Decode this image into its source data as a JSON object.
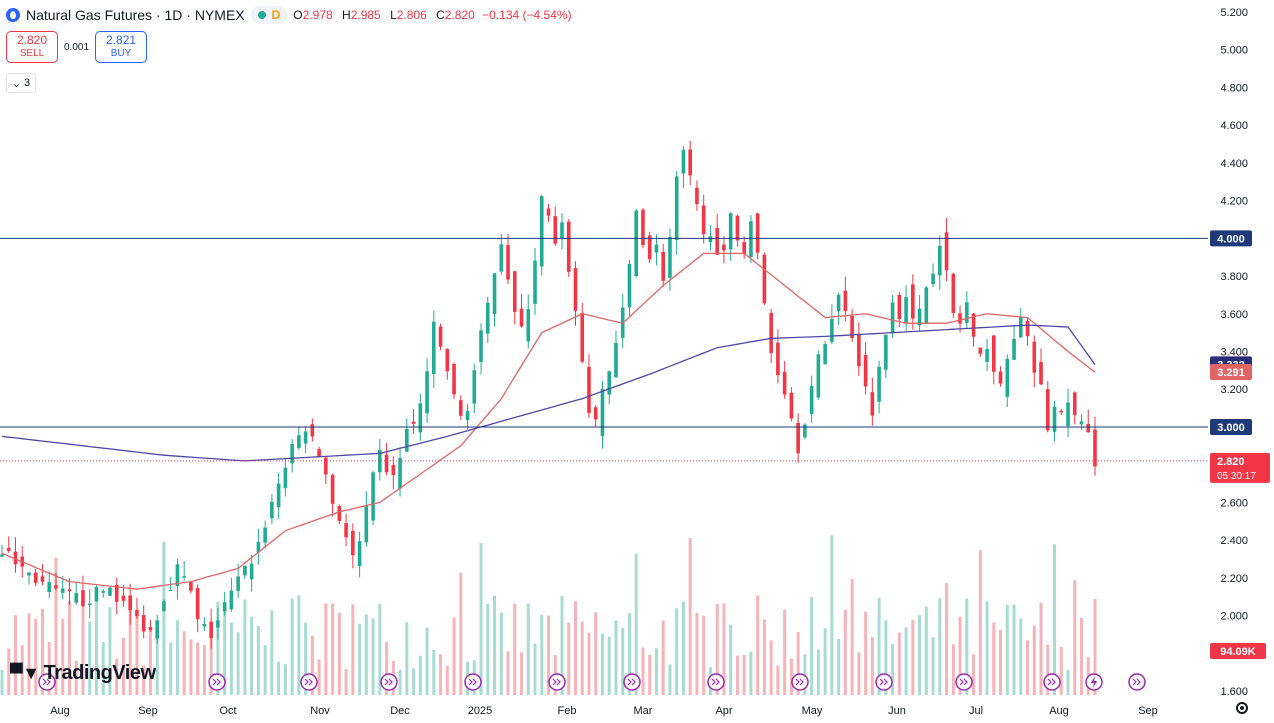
{
  "header": {
    "title": "Natural Gas Futures · 1D · NYMEX",
    "timeframe_badge": "D",
    "ohlc": {
      "o_label": "O",
      "o": "2.978",
      "h_label": "H",
      "h": "2.985",
      "l_label": "L",
      "l": "2.806",
      "c_label": "C",
      "c": "2.820",
      "change": "−0.134 (−4.54%)"
    }
  },
  "trade": {
    "sell_price": "2.820",
    "sell_label": "SELL",
    "spread": "0.001",
    "buy_price": "2.821",
    "buy_label": "BUY"
  },
  "indicators_toggle": {
    "count": "3"
  },
  "branding": {
    "logo_text": "TradingView"
  },
  "colors": {
    "up": "#22ab94",
    "down": "#f23645",
    "ma50": "#e06666",
    "ma200": "#5046a8",
    "hline": "#2962ff",
    "price_label": "#f23645"
  },
  "chart_data": {
    "type": "candlestick",
    "y_ticks": [
      "5.200",
      "5.000",
      "4.800",
      "4.600",
      "4.400",
      "4.200",
      "4.000",
      "3.800",
      "3.600",
      "3.400",
      "3.200",
      "3.000",
      "2.800",
      "2.600",
      "2.400",
      "2.200",
      "2.000",
      "1.800",
      "1.600"
    ],
    "x_ticks": [
      "Aug",
      "Sep",
      "Oct",
      "Nov",
      "Dec",
      "2025",
      "Feb",
      "Mar",
      "Apr",
      "May",
      "Jun",
      "Jul",
      "Aug",
      "Sep"
    ],
    "ylim": [
      1.6,
      5.25
    ],
    "horizontal_lines": [
      {
        "value": 4.0,
        "label": "4.000"
      },
      {
        "value": 3.0,
        "label": "3.000"
      }
    ],
    "ma_labels": [
      {
        "value": 3.332,
        "label": "3.332",
        "series": "ma200"
      },
      {
        "value": 3.291,
        "label": "3.291",
        "series": "ma50"
      }
    ],
    "last_price": {
      "value": 2.82,
      "label": "2.820",
      "countdown": "05:30:17"
    },
    "volume_label": "94.09K",
    "event_markers": 13,
    "close_path": [
      [
        0,
        2.35
      ],
      [
        4,
        2.22
      ],
      [
        8,
        2.12
      ],
      [
        12,
        2.08
      ],
      [
        16,
        2.15
      ],
      [
        18,
        2.06
      ],
      [
        20,
        1.98
      ],
      [
        22,
        1.92
      ],
      [
        24,
        2.1
      ],
      [
        26,
        2.25
      ],
      [
        28,
        2.12
      ],
      [
        29,
        1.96
      ],
      [
        31,
        1.9
      ],
      [
        33,
        2.05
      ],
      [
        35,
        2.18
      ],
      [
        37,
        2.3
      ],
      [
        38,
        2.38
      ],
      [
        40,
        2.6
      ],
      [
        42,
        2.8
      ],
      [
        44,
        2.95
      ],
      [
        45,
        3.0
      ],
      [
        46,
        2.92
      ],
      [
        47,
        2.85
      ],
      [
        48,
        2.75
      ],
      [
        49,
        2.6
      ],
      [
        50,
        2.52
      ],
      [
        51,
        2.42
      ],
      [
        52,
        2.3
      ],
      [
        53,
        2.38
      ],
      [
        54,
        2.55
      ],
      [
        55,
        2.72
      ],
      [
        56,
        2.85
      ],
      [
        57,
        2.78
      ],
      [
        58,
        2.72
      ],
      [
        59,
        2.85
      ],
      [
        60,
        2.98
      ],
      [
        61,
        3.0
      ],
      [
        62,
        3.12
      ],
      [
        63,
        3.3
      ],
      [
        64,
        3.52
      ],
      [
        65,
        3.42
      ],
      [
        66,
        3.3
      ],
      [
        67,
        3.15
      ],
      [
        68,
        3.05
      ],
      [
        69,
        3.12
      ],
      [
        70,
        3.3
      ],
      [
        71,
        3.48
      ],
      [
        72,
        3.62
      ],
      [
        73,
        3.85
      ],
      [
        74,
        4.0
      ],
      [
        75,
        3.8
      ],
      [
        76,
        3.6
      ],
      [
        77,
        3.5
      ],
      [
        78,
        3.65
      ],
      [
        79,
        3.9
      ],
      [
        80,
        4.2
      ],
      [
        81,
        4.1
      ],
      [
        82,
        3.95
      ],
      [
        83,
        4.05
      ],
      [
        84,
        3.85
      ],
      [
        85,
        3.6
      ],
      [
        86,
        3.35
      ],
      [
        87,
        3.1
      ],
      [
        88,
        3.0
      ],
      [
        89,
        3.2
      ],
      [
        90,
        3.3
      ],
      [
        91,
        3.45
      ],
      [
        92,
        3.6
      ],
      [
        93,
        3.85
      ],
      [
        94,
        4.15
      ],
      [
        95,
        4.0
      ],
      [
        96,
        3.9
      ],
      [
        97,
        3.95
      ],
      [
        98,
        3.8
      ],
      [
        99,
        4.0
      ],
      [
        100,
        4.3
      ],
      [
        101,
        4.45
      ],
      [
        102,
        4.3
      ],
      [
        103,
        4.15
      ],
      [
        104,
        4.0
      ],
      [
        105,
        4.05
      ],
      [
        106,
        3.95
      ],
      [
        107,
        3.9
      ],
      [
        108,
        4.1
      ],
      [
        109,
        4.0
      ],
      [
        110,
        3.95
      ],
      [
        111,
        4.1
      ],
      [
        112,
        3.9
      ],
      [
        113,
        3.65
      ],
      [
        114,
        3.4
      ],
      [
        115,
        3.3
      ],
      [
        116,
        3.2
      ],
      [
        117,
        3.05
      ],
      [
        118,
        2.9
      ],
      [
        119,
        3.05
      ],
      [
        120,
        3.2
      ],
      [
        121,
        3.35
      ],
      [
        122,
        3.45
      ],
      [
        123,
        3.6
      ],
      [
        124,
        3.7
      ],
      [
        125,
        3.6
      ],
      [
        126,
        3.5
      ],
      [
        127,
        3.35
      ],
      [
        128,
        3.2
      ],
      [
        129,
        3.1
      ],
      [
        130,
        3.3
      ],
      [
        131,
        3.5
      ],
      [
        132,
        3.7
      ],
      [
        133,
        3.6
      ],
      [
        134,
        3.72
      ],
      [
        135,
        3.55
      ],
      [
        136,
        3.6
      ],
      [
        137,
        3.75
      ],
      [
        138,
        3.85
      ],
      [
        139,
        4.0
      ],
      [
        140,
        3.8
      ],
      [
        141,
        3.6
      ],
      [
        142,
        3.55
      ],
      [
        143,
        3.65
      ],
      [
        144,
        3.45
      ],
      [
        145,
        3.35
      ],
      [
        146,
        3.45
      ],
      [
        147,
        3.3
      ],
      [
        148,
        3.2
      ],
      [
        149,
        3.35
      ],
      [
        150,
        3.5
      ],
      [
        151,
        3.55
      ],
      [
        152,
        3.45
      ],
      [
        153,
        3.3
      ],
      [
        154,
        3.2
      ],
      [
        155,
        3.0
      ],
      [
        156,
        3.1
      ],
      [
        157,
        3.05
      ],
      [
        158,
        3.15
      ],
      [
        159,
        3.05
      ],
      [
        160,
        3.0
      ],
      [
        161,
        2.95
      ],
      [
        162,
        2.82
      ]
    ],
    "ma50_path": [
      [
        0,
        2.33
      ],
      [
        10,
        2.18
      ],
      [
        20,
        2.14
      ],
      [
        28,
        2.18
      ],
      [
        35,
        2.25
      ],
      [
        42,
        2.45
      ],
      [
        50,
        2.55
      ],
      [
        56,
        2.6
      ],
      [
        62,
        2.75
      ],
      [
        68,
        2.9
      ],
      [
        74,
        3.15
      ],
      [
        80,
        3.5
      ],
      [
        86,
        3.6
      ],
      [
        92,
        3.55
      ],
      [
        98,
        3.75
      ],
      [
        104,
        3.92
      ],
      [
        110,
        3.92
      ],
      [
        116,
        3.75
      ],
      [
        122,
        3.58
      ],
      [
        128,
        3.6
      ],
      [
        134,
        3.55
      ],
      [
        140,
        3.55
      ],
      [
        146,
        3.6
      ],
      [
        152,
        3.58
      ],
      [
        158,
        3.4
      ],
      [
        162,
        3.29
      ]
    ],
    "ma200_path": [
      [
        0,
        2.95
      ],
      [
        12,
        2.9
      ],
      [
        24,
        2.85
      ],
      [
        36,
        2.82
      ],
      [
        46,
        2.84
      ],
      [
        56,
        2.86
      ],
      [
        66,
        2.95
      ],
      [
        76,
        3.05
      ],
      [
        86,
        3.15
      ],
      [
        96,
        3.28
      ],
      [
        106,
        3.42
      ],
      [
        114,
        3.47
      ],
      [
        122,
        3.48
      ],
      [
        132,
        3.5
      ],
      [
        142,
        3.52
      ],
      [
        152,
        3.54
      ],
      [
        158,
        3.53
      ],
      [
        162,
        3.33
      ]
    ]
  }
}
